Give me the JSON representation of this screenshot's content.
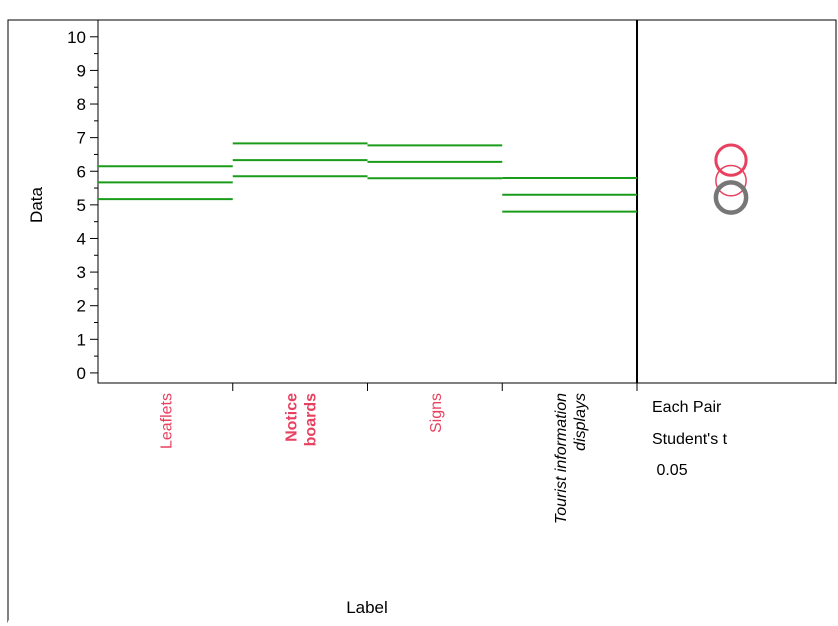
{
  "chart_data": {
    "type": "line",
    "title": "",
    "xlabel": "Label",
    "ylabel": "Data",
    "ylim": [
      -0.3,
      10.5
    ],
    "yticks": [
      "0",
      "1",
      "2",
      "3",
      "4",
      "5",
      "6",
      "7",
      "8",
      "9",
      "10"
    ],
    "grid": false,
    "categories": [
      {
        "lines": [
          "Leaflets"
        ],
        "style": "normal",
        "color": "#e8405f"
      },
      {
        "lines": [
          "Notice",
          "boards"
        ],
        "style": "bold",
        "color": "#e8405f"
      },
      {
        "lines": [
          "Signs"
        ],
        "style": "normal",
        "color": "#e8405f"
      },
      {
        "lines": [
          "Tourist information",
          "displays"
        ],
        "style": "italic",
        "color": "#000000"
      }
    ],
    "series": [
      {
        "values": [
          6.15,
          6.83,
          6.77,
          5.8
        ]
      },
      {
        "values": [
          5.67,
          6.33,
          6.28,
          5.3
        ]
      },
      {
        "values": [
          5.17,
          5.85,
          5.79,
          4.8
        ]
      }
    ],
    "line_color": "#1a9c1a",
    "comparison_circles": [
      {
        "center": 6.33,
        "radius": 0.45,
        "color": "#e8405f",
        "width": 3
      },
      {
        "center": 5.72,
        "radius": 0.45,
        "color": "#e8405f",
        "width": 1.5
      },
      {
        "center": 5.22,
        "radius": 0.45,
        "color": "#777777",
        "width": 4.5
      }
    ],
    "info": {
      "line1": "Each Pair",
      "line2": "Student's t",
      "line3": " 0.05"
    }
  }
}
